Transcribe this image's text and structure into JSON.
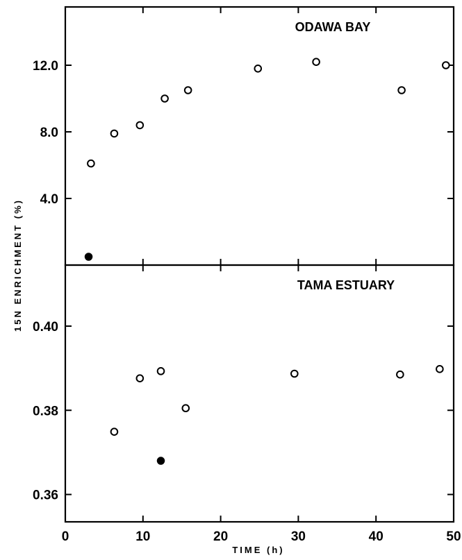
{
  "chart_data": {
    "type": "scatter",
    "x_axis": {
      "label": "TIME (h)",
      "range": [
        0,
        50
      ],
      "ticks": [
        0,
        10,
        20,
        30,
        40,
        50
      ],
      "tick_labels": [
        "0",
        "10",
        "20",
        "30",
        "40",
        "50"
      ]
    },
    "y_axis_label": "15N ENRICHMENT (%)",
    "panels": [
      {
        "title": "ODAWA BAY",
        "ylim": [
          0,
          15.5
        ],
        "y_ticks": [
          4,
          8,
          12
        ],
        "y_tick_labels": [
          "4.0",
          "8.0",
          "12.0"
        ],
        "series": [
          {
            "marker": "open",
            "x": [
              3.3,
              6.3,
              9.6,
              12.8,
              15.8,
              24.8,
              32.3,
              43.3,
              49.0
            ],
            "y": [
              6.1,
              7.9,
              8.4,
              10.0,
              10.5,
              11.8,
              12.2,
              10.5,
              12.0
            ]
          },
          {
            "marker": "filled",
            "x": [
              3.0
            ],
            "y": [
              0.5
            ]
          }
        ]
      },
      {
        "title": "TAMA ESTUARY",
        "ylim": [
          0.3535,
          0.4145
        ],
        "y_ticks": [
          0.36,
          0.38,
          0.4
        ],
        "y_tick_labels": [
          "0.36",
          "0.38",
          "0.40"
        ],
        "series": [
          {
            "marker": "open",
            "x": [
              6.3,
              9.6,
              12.3,
              15.5,
              29.5,
              43.1,
              48.2
            ],
            "y": [
              0.3749,
              0.3876,
              0.3893,
              0.3805,
              0.3887,
              0.3885,
              0.3898
            ]
          },
          {
            "marker": "filled",
            "x": [
              12.3
            ],
            "y": [
              0.368
            ]
          }
        ]
      }
    ],
    "grid": false
  }
}
